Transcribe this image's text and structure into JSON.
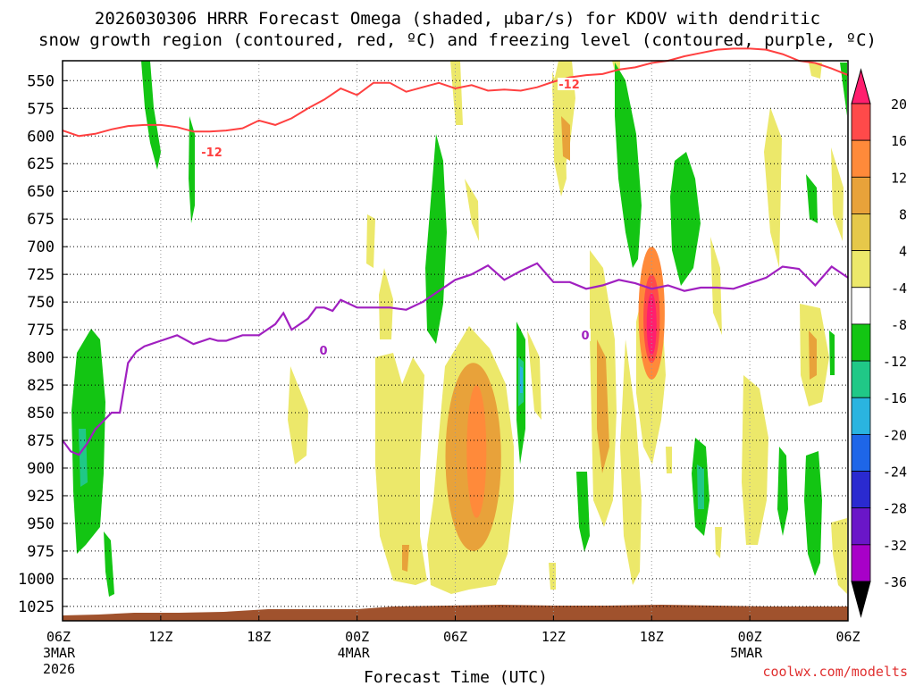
{
  "chart_data": {
    "type": "heatmap",
    "title": "2026030306 HRRR Forecast Omega (shaded, μbar/s) for KDOV with dendritic snow growth region (contoured, red, ºC) and freezing level (contoured, purple, ºC)",
    "xlabel": "Forecast Time (UTC)",
    "ylabel": "",
    "credit": "coolwx.com/modelts",
    "x_ticks": [
      {
        "label": "06Z",
        "sub1": "3MAR",
        "sub2": "2026",
        "hour": 0
      },
      {
        "label": "12Z",
        "sub1": "",
        "sub2": "",
        "hour": 6
      },
      {
        "label": "18Z",
        "sub1": "",
        "sub2": "",
        "hour": 12
      },
      {
        "label": "00Z",
        "sub1": "4MAR",
        "sub2": "",
        "hour": 18
      },
      {
        "label": "06Z",
        "sub1": "",
        "sub2": "",
        "hour": 24
      },
      {
        "label": "12Z",
        "sub1": "",
        "sub2": "",
        "hour": 30
      },
      {
        "label": "18Z",
        "sub1": "",
        "sub2": "",
        "hour": 36
      },
      {
        "label": "00Z",
        "sub1": "5MAR",
        "sub2": "",
        "hour": 42
      },
      {
        "label": "06Z",
        "sub1": "",
        "sub2": "",
        "hour": 48
      }
    ],
    "xlim": [
      0,
      48
    ],
    "y_ticks": [
      550,
      575,
      600,
      625,
      650,
      675,
      700,
      725,
      750,
      775,
      800,
      825,
      850,
      875,
      900,
      925,
      950,
      975,
      1000,
      1025
    ],
    "ylim": [
      532,
      1038
    ],
    "grid": true,
    "colorbar": {
      "labels": [
        "20",
        "16",
        "12",
        "8",
        "4",
        "-4",
        "-8",
        "-12",
        "-16",
        "-20",
        "-24",
        "-28",
        "-32",
        "-36"
      ],
      "colors": [
        "#ff1f6e",
        "#ff4a4a",
        "#ff8a3a",
        "#e8a23a",
        "#e6c84a",
        "#ece86a",
        "#ffffff",
        "#13c513",
        "#20c887",
        "#2ab4e0",
        "#1e66e8",
        "#2a2ad0",
        "#6a16c8",
        "#a800c8",
        "#a8a8a8",
        "#000000"
      ]
    },
    "freezing_level_label": "0",
    "dgz_label": "-12",
    "freezing_level": {
      "name": "freezing level",
      "hours": [
        0,
        0.5,
        1,
        1.5,
        2,
        3,
        3.5,
        4,
        4.5,
        5,
        6,
        7,
        8,
        9,
        9.5,
        10,
        11,
        12,
        13,
        13.5,
        14,
        15,
        15.5,
        16,
        16.5,
        17,
        18,
        19,
        20,
        21,
        22,
        23,
        24,
        25,
        26,
        27,
        28,
        29,
        30,
        31,
        32,
        33,
        34,
        35,
        36,
        37,
        38,
        39,
        40,
        41,
        42,
        43,
        44,
        45,
        46,
        47,
        48
      ],
      "pressure": [
        875,
        885,
        888,
        878,
        865,
        850,
        850,
        805,
        795,
        790,
        785,
        780,
        788,
        783,
        785,
        785,
        780,
        780,
        770,
        760,
        775,
        765,
        755,
        755,
        758,
        748,
        755,
        755,
        755,
        757,
        750,
        740,
        730,
        725,
        717,
        730,
        722,
        715,
        732,
        732,
        738,
        735,
        730,
        733,
        738,
        735,
        740,
        737,
        737,
        738,
        733,
        728,
        718,
        720,
        735,
        718,
        728
      ]
    },
    "dgz_line": {
      "name": "-12 C isotherm",
      "hours": [
        0,
        1,
        2,
        3,
        4,
        5,
        6,
        7,
        8,
        9,
        10,
        11,
        12,
        13,
        14,
        15,
        16,
        17,
        18,
        19,
        20,
        21,
        22,
        23,
        24,
        25,
        26,
        27,
        28,
        29,
        30,
        31,
        32,
        33,
        34,
        35,
        36,
        37,
        38,
        39,
        40,
        41,
        42,
        43,
        44,
        45,
        46,
        47,
        48
      ],
      "pressure": [
        595,
        600,
        598,
        594,
        591,
        590,
        590,
        592,
        596,
        596,
        595,
        593,
        586,
        590,
        584,
        575,
        567,
        557,
        563,
        552,
        552,
        560,
        556,
        552,
        557,
        554,
        559,
        558,
        559,
        556,
        551,
        547,
        545,
        544,
        540,
        538,
        534,
        532,
        528,
        525,
        522,
        521,
        521,
        522,
        526,
        532,
        534,
        539,
        545
      ]
    },
    "shaded_regions": [
      {
        "name": "ascent core 20",
        "color": "#ff1f6e",
        "hour": 36,
        "p_center": 770,
        "half_width_h": 0.3,
        "p_half": 28
      },
      {
        "name": "ascent 16",
        "color": "#ff4a4a",
        "hour": 36,
        "p_center": 765,
        "half_width_h": 0.5,
        "p_half": 40
      },
      {
        "name": "ascent 12",
        "color": "#ff8a3a",
        "hour": 36,
        "p_center": 760,
        "half_width_h": 0.8,
        "p_half": 60
      },
      {
        "name": "ascent 12 b",
        "color": "#ff8a3a",
        "hour": 25.3,
        "p_center": 885,
        "half_width_h": 0.6,
        "p_half": 60
      },
      {
        "name": "ascent 8 b",
        "color": "#e8a23a",
        "hour": 25.1,
        "p_center": 890,
        "half_width_h": 1.7,
        "p_half": 85
      }
    ]
  }
}
